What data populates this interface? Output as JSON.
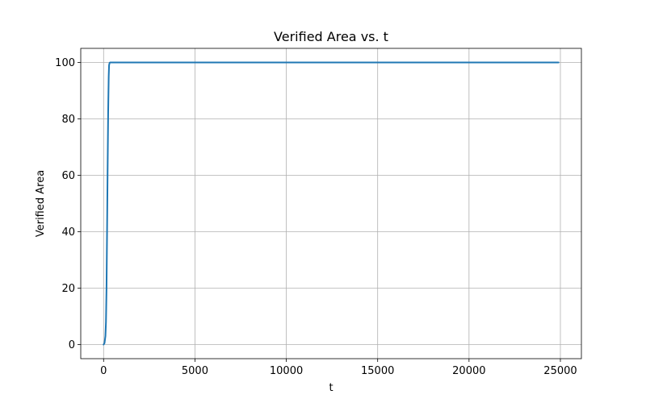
{
  "chart_data": {
    "type": "line",
    "title": "Verified Area vs. t",
    "xlabel": "t",
    "ylabel": "Verified Area",
    "xlim": [
      -1250,
      26150
    ],
    "ylim": [
      -5,
      105
    ],
    "xticks": [
      0,
      5000,
      10000,
      15000,
      20000,
      25000
    ],
    "xtick_labels": [
      "0",
      "5000",
      "10000",
      "15000",
      "20000",
      "25000"
    ],
    "yticks": [
      0,
      20,
      40,
      60,
      80,
      100
    ],
    "ytick_labels": [
      "0",
      "20",
      "40",
      "60",
      "80",
      "100"
    ],
    "grid": true,
    "legend": "none",
    "series": [
      {
        "color": "#1f77b4",
        "x": [
          0,
          50,
          100,
          130,
          160,
          190,
          220,
          250,
          280,
          300,
          330,
          360,
          400,
          500,
          1000,
          5000,
          10000,
          15000,
          20000,
          24900
        ],
        "y": [
          0,
          0.5,
          3,
          8,
          20,
          40,
          62,
          82,
          95,
          99,
          99.9,
          100,
          100,
          100,
          100,
          100,
          100,
          100,
          100,
          100
        ]
      }
    ]
  }
}
